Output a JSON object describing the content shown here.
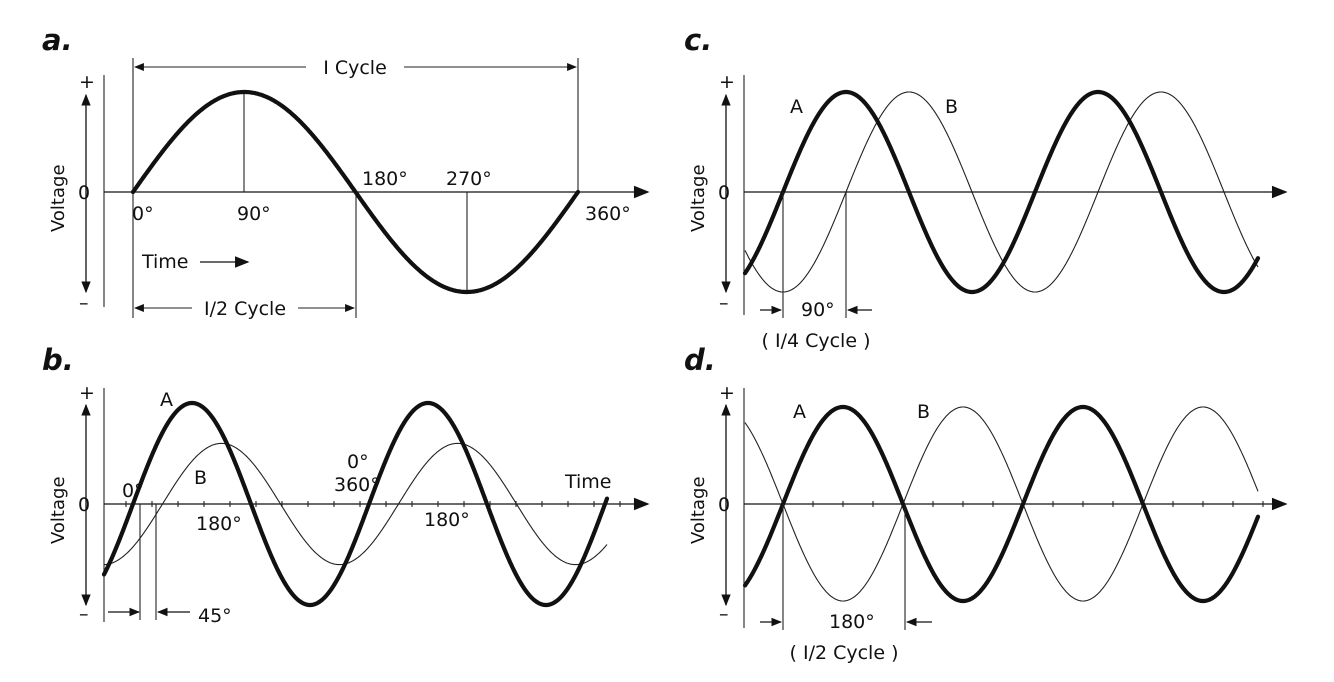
{
  "panels": {
    "a": {
      "letter": "a.",
      "plus": "+",
      "minus": "–",
      "zero": "0",
      "ylabel": "Voltage",
      "cycle_label": "I Cycle",
      "half_cycle_label": "I/2 Cycle",
      "time_label": "Time",
      "deg0": "0°",
      "deg90": "90°",
      "deg180": "180°",
      "deg270": "270°",
      "deg360": "360°"
    },
    "b": {
      "letter": "b.",
      "plus": "+",
      "minus": "–",
      "zero": "0",
      "ylabel": "Voltage",
      "waveA": "A",
      "waveB": "B",
      "time_label": "Time",
      "deg0": "0°",
      "deg180_1": "180°",
      "deg0_2": "0°",
      "deg360": "360°",
      "deg180_2": "180°",
      "phase_label": "45°"
    },
    "c": {
      "letter": "c.",
      "plus": "+",
      "minus": "–",
      "zero": "0",
      "ylabel": "Voltage",
      "waveA": "A",
      "waveB": "B",
      "phase_label": "90°",
      "phase_cycle": "( I/4 Cycle )"
    },
    "d": {
      "letter": "d.",
      "plus": "+",
      "minus": "–",
      "zero": "0",
      "ylabel": "Voltage",
      "waveA": "A",
      "waveB": "B",
      "phase_label": "180°",
      "phase_cycle": "( I/2 Cycle )"
    }
  },
  "waves": {
    "a": {
      "period_deg": 360,
      "phase_deg": 0,
      "cycles": 1,
      "amplitude": 1
    },
    "b": {
      "A_phase_deg": 0,
      "B_phase_deg": 45,
      "B_amplitude": 0.6,
      "A_amplitude": 1
    },
    "c": {
      "A_phase_deg": 0,
      "B_phase_deg": 90
    },
    "d": {
      "A_phase_deg": 0,
      "B_phase_deg": 180
    }
  }
}
